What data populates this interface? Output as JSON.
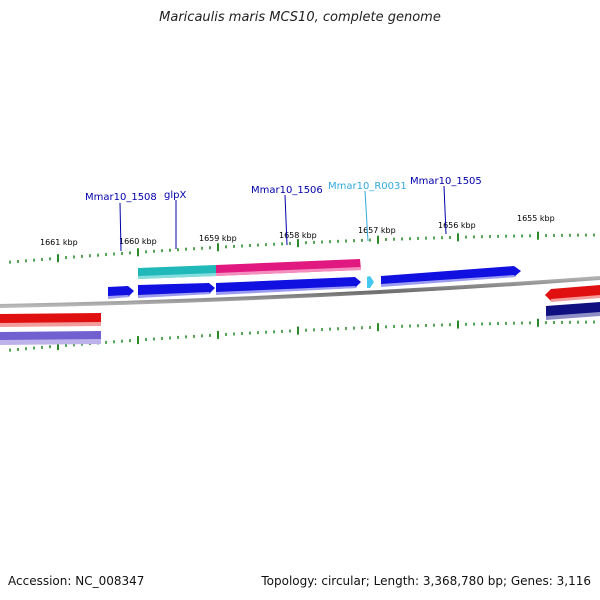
{
  "title": "Maricaulis maris MCS10, complete genome",
  "footer": {
    "accession": "Accession: NC_008347",
    "summary": "Topology: circular; Length: 3,368,780 bp; Genes: 3,116"
  },
  "colors": {
    "tick": "#2a8a2a",
    "backbone": "#888888",
    "label_gene": "#0000aa",
    "label_rna": "#33aadd",
    "cds_forward": "#1010e0",
    "cds_teal": "#20b8b8",
    "cds_pink": "#e01880",
    "cds_red": "#e01010",
    "cds_purple": "#7060d0",
    "cds_navy": "#101080",
    "rna": "#44c8f0"
  },
  "kbp_labels": [
    "1661 kbp",
    "1660 kbp",
    "1659 kbp",
    "1658 kbp",
    "1657 kbp",
    "1656 kbp",
    "1655 kbp"
  ],
  "gene_labels": [
    {
      "text": "Mmar10_1508",
      "kind": "gene"
    },
    {
      "text": "glpX",
      "kind": "gene"
    },
    {
      "text": "Mmar10_1506",
      "kind": "gene"
    },
    {
      "text": "Mmar10_R0031",
      "kind": "rna"
    },
    {
      "text": "Mmar10_1505",
      "kind": "gene"
    }
  ]
}
